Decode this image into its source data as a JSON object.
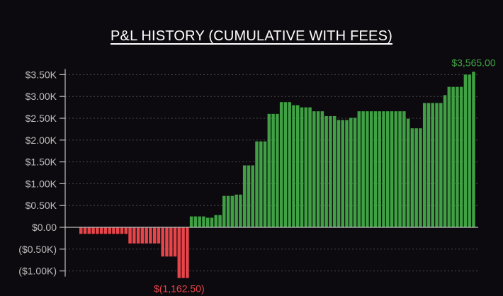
{
  "chart_data": {
    "type": "bar",
    "title": "P&L HISTORY (CUMULATIVE WITH FEES)",
    "ylim": [
      -1162.5,
      3565
    ],
    "y_ticks": [
      3500,
      3000,
      2500,
      2000,
      1500,
      1000,
      500,
      0,
      -500,
      -1000
    ],
    "y_tick_labels": [
      "$3.50K",
      "$3.00K",
      "$2.50K",
      "$2.00K",
      "$1.50K",
      "$1.00K",
      "$0.50K",
      "$0.00",
      "($0.50K)",
      "($1.00K)"
    ],
    "grid": true,
    "values": [
      -150,
      -150,
      -150,
      -150,
      -150,
      -150,
      -150,
      -150,
      -150,
      -150,
      -150,
      -150,
      -370,
      -370,
      -370,
      -370,
      -370,
      -370,
      -370,
      -370,
      -670,
      -670,
      -670,
      -670,
      -1162.5,
      -1162.5,
      -1162.5,
      250,
      250,
      250,
      250,
      220,
      220,
      280,
      280,
      720,
      720,
      720,
      750,
      750,
      1420,
      1420,
      1420,
      1970,
      1970,
      1970,
      2600,
      2600,
      2600,
      2870,
      2870,
      2870,
      2800,
      2800,
      2750,
      2750,
      2750,
      2660,
      2660,
      2660,
      2550,
      2550,
      2550,
      2460,
      2460,
      2460,
      2510,
      2510,
      2660,
      2660,
      2660,
      2660,
      2660,
      2660,
      2660,
      2660,
      2660,
      2660,
      2660,
      2660,
      2490,
      2270,
      2270,
      2270,
      2850,
      2850,
      2850,
      2850,
      2850,
      3030,
      3220,
      3220,
      3220,
      3220,
      3500,
      3500,
      3565
    ],
    "positive_color": "#3fa044",
    "negative_color": "#e8454a",
    "annotations": [
      {
        "text": "$3,565.00",
        "value": 3565,
        "color": "#3fa044"
      },
      {
        "text": "$(1,162.50)",
        "value": -1162.5,
        "color": "#e8454a"
      }
    ]
  }
}
